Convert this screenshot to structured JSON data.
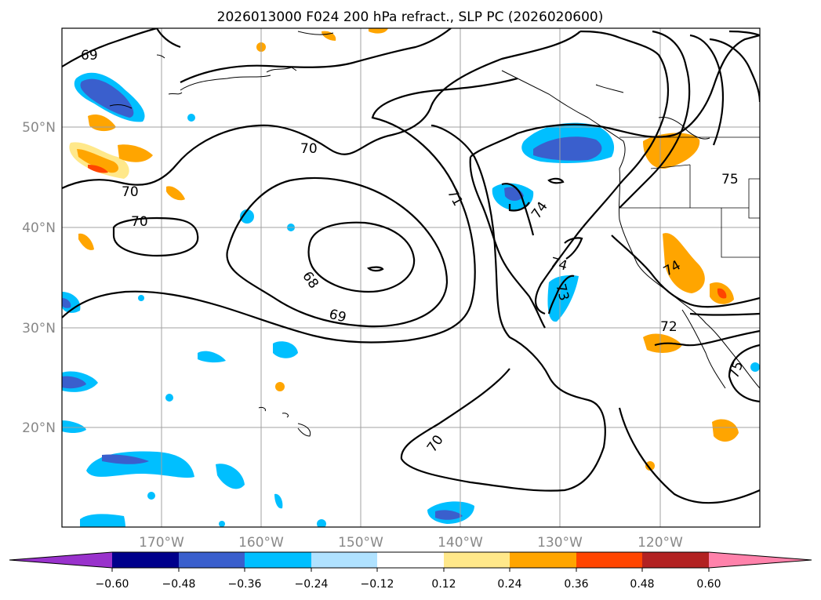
{
  "title": "2026013000 F024 200 hPa refract., SLP PC (2026020600)",
  "lat_labels": [
    "50°N",
    "40°N",
    "30°N",
    "20°N"
  ],
  "lon_labels": [
    "170°W",
    "160°W",
    "150°W",
    "140°W",
    "130°W",
    "120°W"
  ],
  "colorbar": {
    "ticks": [
      "−0.60",
      "−0.48",
      "−0.36",
      "−0.24",
      "−0.12",
      "0.12",
      "0.24",
      "0.36",
      "0.48",
      "0.60"
    ],
    "colors": [
      "#9932cc",
      "#00008b",
      "#3a5fcd",
      "#00bfff",
      "#b0e2ff",
      "#ffffff",
      "#ffe88a",
      "#ffa500",
      "#ff4500",
      "#b22222",
      "#ff82ab"
    ]
  },
  "contour_labels": [
    "69",
    "70",
    "70",
    "70",
    "71",
    "68",
    "69",
    "70",
    "74",
    "74",
    "73",
    "74",
    "72",
    "75",
    "75"
  ]
}
